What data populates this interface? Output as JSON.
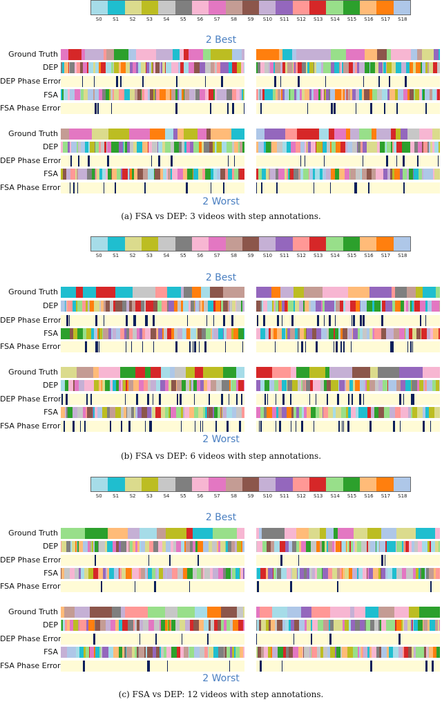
{
  "legend": {
    "steps": [
      {
        "label": "S0",
        "color": "#a6dce8"
      },
      {
        "label": "S1",
        "color": "#1fbecf"
      },
      {
        "label": "S2",
        "color": "#dbdb8d"
      },
      {
        "label": "S3",
        "color": "#bcbd22"
      },
      {
        "label": "S4",
        "color": "#c7c7c7"
      },
      {
        "label": "S5",
        "color": "#7f7f7f"
      },
      {
        "label": "S6",
        "color": "#f7b6d2"
      },
      {
        "label": "S7",
        "color": "#e377c2"
      },
      {
        "label": "S8",
        "color": "#c49c94"
      },
      {
        "label": "S9",
        "color": "#8c564b"
      },
      {
        "label": "S10",
        "color": "#c5b0d5"
      },
      {
        "label": "S11",
        "color": "#9467bd"
      },
      {
        "label": "S12",
        "color": "#ff9896"
      },
      {
        "label": "S13",
        "color": "#d62728"
      },
      {
        "label": "S14",
        "color": "#98df8a"
      },
      {
        "label": "S15",
        "color": "#2ca02c"
      },
      {
        "label": "S16",
        "color": "#ffbb78"
      },
      {
        "label": "S17",
        "color": "#ff7f0e"
      },
      {
        "label": "S18",
        "color": "#aec7e8"
      }
    ]
  },
  "colors": {
    "error_background": "#fffbd6",
    "error_mark": "#0b1f5c",
    "section_title": "#4a7fc1"
  },
  "row_labels": [
    "Ground Truth",
    "DEP",
    "DEP Phase Errors",
    "FSA",
    "FSA Phase Errors"
  ],
  "panels": [
    {
      "best_title": "2 Best",
      "worst_title": "2 Worst",
      "caption": "(a) FSA vs DEP: 3 videos with step annotations."
    },
    {
      "best_title": "2 Best",
      "worst_title": "2 Worst",
      "caption": "(b) FSA vs DEP: 6 videos with step annotations."
    },
    {
      "best_title": "2 Best",
      "worst_title": "2 Worst",
      "caption": "(c) FSA vs DEP: 12 videos with step annotations."
    }
  ]
}
